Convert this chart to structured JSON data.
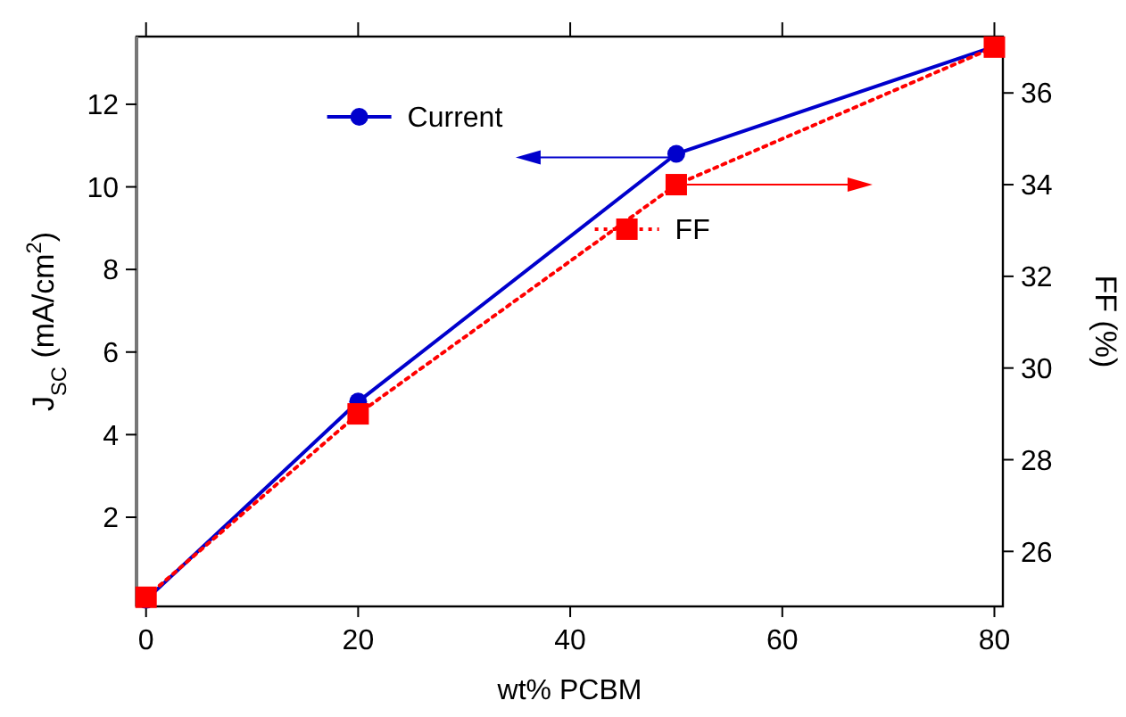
{
  "chart_data": {
    "type": "line",
    "xlabel": "wt% PCBM",
    "ylabel": "J$_{SC}$ (mA/cm$^{2}$)",
    "y2label": "FF (%)",
    "x": [
      0,
      20,
      50,
      80
    ],
    "series": [
      {
        "name": "Current",
        "color": "#0000cc",
        "values": [
          0.0,
          4.8,
          10.8,
          13.4
        ],
        "marker": "circle",
        "line_style": "solid"
      },
      {
        "name": "FF",
        "color": "#ff0000",
        "values": [
          25.0,
          29.0,
          34.0,
          37.0
        ],
        "marker": "square",
        "line_style": "dotted",
        "axis": "y2"
      }
    ],
    "xlim": [
      -0.9,
      80.8
    ],
    "xticks": [
      0,
      20,
      40,
      60,
      80
    ],
    "ylim": [
      -0.16,
      13.64
    ],
    "yticks": [
      2,
      4,
      6,
      8,
      10,
      12
    ],
    "y2lim": [
      24.8,
      37.23
    ],
    "y2ticks": [
      26,
      28,
      30,
      32,
      34,
      36
    ],
    "grid": false,
    "legend": "top"
  }
}
